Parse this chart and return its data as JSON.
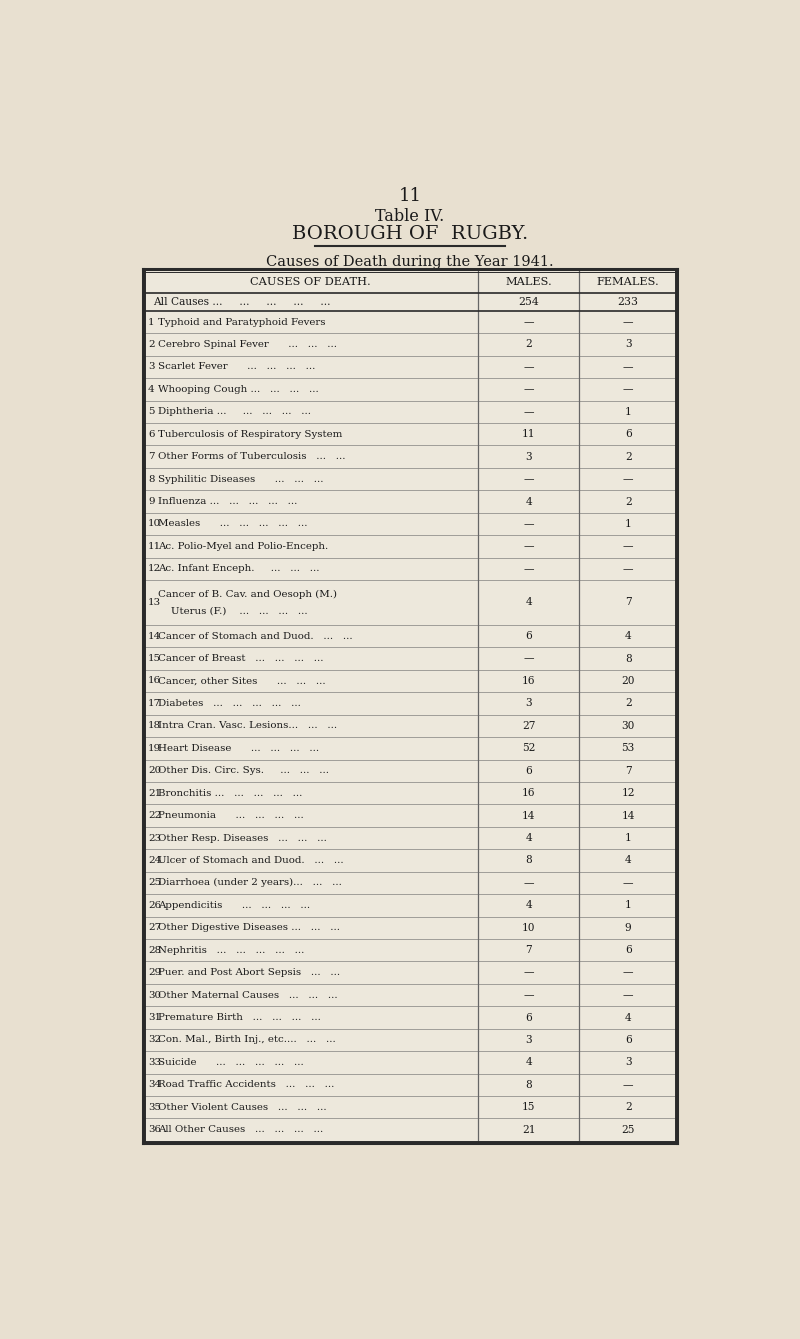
{
  "page_number": "11",
  "title_line1": "Table IV.",
  "title_line2": "BOROUGH OF  RUGBY.",
  "subtitle": "Causes of Death during the Year 1941.",
  "col_headers": [
    "CAUSES OF DEATH.",
    "MALES.",
    "FEMALES."
  ],
  "all_causes_m": "254",
  "all_causes_f": "233",
  "rows": [
    {
      "num": "1",
      "cause": "Typhoid and Paratyphoid Fevers",
      "dots": "...",
      "m": "—",
      "f": "—",
      "two_line": false
    },
    {
      "num": "2",
      "cause": "Cerebro Spinal Fever      ...   ...   ...",
      "dots": "",
      "m": "2",
      "f": "3",
      "two_line": false
    },
    {
      "num": "3",
      "cause": "Scarlet Fever      ...   ...   ...   ...",
      "dots": "",
      "m": "—",
      "f": "—",
      "two_line": false
    },
    {
      "num": "4",
      "cause": "Whooping Cough ...   ...   ...   ...",
      "dots": "",
      "m": "—",
      "f": "—",
      "two_line": false
    },
    {
      "num": "5",
      "cause": "Diphtheria ...     ...   ...   ...   ...",
      "dots": "",
      "m": "—",
      "f": "1",
      "two_line": false
    },
    {
      "num": "6",
      "cause": "Tuberculosis of Respiratory System",
      "dots": "...",
      "m": "11",
      "f": "6",
      "two_line": false
    },
    {
      "num": "7",
      "cause": "Other Forms of Tuberculosis   ...   ...",
      "dots": "",
      "m": "3",
      "f": "2",
      "two_line": false
    },
    {
      "num": "8",
      "cause": "Syphilitic Diseases      ...   ...   ...",
      "dots": "",
      "m": "—",
      "f": "—",
      "two_line": false
    },
    {
      "num": "9",
      "cause": "Influenza ...   ...   ...   ...   ...",
      "dots": "",
      "m": "4",
      "f": "2",
      "two_line": false
    },
    {
      "num": "10",
      "cause": "Measles      ...   ...   ...   ...   ...",
      "dots": "",
      "m": "—",
      "f": "1",
      "two_line": false
    },
    {
      "num": "11",
      "cause": "Ac. Polio-Myel and Polio-Enceph.",
      "dots": "...",
      "m": "—",
      "f": "—",
      "two_line": false
    },
    {
      "num": "12",
      "cause": "Ac. Infant Enceph.     ...   ...   ...",
      "dots": "",
      "m": "—",
      "f": "—",
      "two_line": false
    },
    {
      "num": "13",
      "cause": "Cancer of B. Cav. and Oesoph (M.)",
      "dots": "",
      "m": "4",
      "f": "7",
      "two_line": true,
      "cause2": "    Uterus (F.)    ...   ...   ...   ..."
    },
    {
      "num": "14",
      "cause": "Cancer of Stomach and Duod.   ...   ...",
      "dots": "",
      "m": "6",
      "f": "4",
      "two_line": false
    },
    {
      "num": "15",
      "cause": "Cancer of Breast   ...   ...   ...   ...",
      "dots": "",
      "m": "—",
      "f": "8",
      "two_line": false
    },
    {
      "num": "16",
      "cause": "Cancer, other Sites      ...   ...   ...",
      "dots": "",
      "m": "16",
      "f": "20",
      "two_line": false
    },
    {
      "num": "17",
      "cause": "Diabetes   ...   ...   ...   ...   ...",
      "dots": "",
      "m": "3",
      "f": "2",
      "two_line": false
    },
    {
      "num": "18",
      "cause": "Intra Cran. Vasc. Lesions...   ...   ...",
      "dots": "",
      "m": "27",
      "f": "30",
      "two_line": false
    },
    {
      "num": "19",
      "cause": "Heart Disease      ...   ...   ...   ...",
      "dots": "",
      "m": "52",
      "f": "53",
      "two_line": false
    },
    {
      "num": "20",
      "cause": "Other Dis. Circ. Sys.     ...   ...   ...",
      "dots": "",
      "m": "6",
      "f": "7",
      "two_line": false
    },
    {
      "num": "21",
      "cause": "Bronchitis ...   ...   ...   ...   ...",
      "dots": "",
      "m": "16",
      "f": "12",
      "two_line": false
    },
    {
      "num": "22",
      "cause": "Pneumonia      ...   ...   ...   ...",
      "dots": "",
      "m": "14",
      "f": "14",
      "two_line": false
    },
    {
      "num": "23",
      "cause": "Other Resp. Diseases   ...   ...   ...",
      "dots": "",
      "m": "4",
      "f": "1",
      "two_line": false
    },
    {
      "num": "24",
      "cause": "Ulcer of Stomach and Duod.   ...   ...",
      "dots": "",
      "m": "8",
      "f": "4",
      "two_line": false
    },
    {
      "num": "25",
      "cause": "Diarrhoea (under 2 years)...   ...   ...",
      "dots": "",
      "m": "—",
      "f": "—",
      "two_line": false
    },
    {
      "num": "26",
      "cause": "Appendicitis      ...   ...   ...   ...",
      "dots": "",
      "m": "4",
      "f": "1",
      "two_line": false
    },
    {
      "num": "27",
      "cause": "Other Digestive Diseases ...   ...   ...",
      "dots": "",
      "m": "10",
      "f": "9",
      "two_line": false
    },
    {
      "num": "28",
      "cause": "Nephritis   ...   ...   ...   ...   ...",
      "dots": "",
      "m": "7",
      "f": "6",
      "two_line": false
    },
    {
      "num": "29",
      "cause": "Puer. and Post Abort Sepsis   ...   ...",
      "dots": "",
      "m": "—",
      "f": "—",
      "two_line": false
    },
    {
      "num": "30",
      "cause": "Other Maternal Causes   ...   ...   ...",
      "dots": "",
      "m": "—",
      "f": "—",
      "two_line": false
    },
    {
      "num": "31",
      "cause": "Premature Birth   ...   ...   ...   ...",
      "dots": "",
      "m": "6",
      "f": "4",
      "two_line": false
    },
    {
      "num": "32",
      "cause": "Con. Mal., Birth Inj., etc....   ...   ...",
      "dots": "",
      "m": "3",
      "f": "6",
      "two_line": false
    },
    {
      "num": "33",
      "cause": "Suicide      ...   ...   ...   ...   ...",
      "dots": "",
      "m": "4",
      "f": "3",
      "two_line": false
    },
    {
      "num": "34",
      "cause": "Road Traffic Accidents   ...   ...   ...",
      "dots": "",
      "m": "8",
      "f": "—",
      "two_line": false
    },
    {
      "num": "35",
      "cause": "Other Violent Causes   ...   ...   ...",
      "dots": "",
      "m": "15",
      "f": "2",
      "two_line": false
    },
    {
      "num": "36",
      "cause": "All Other Causes   ...   ...   ...   ...",
      "dots": "",
      "m": "21",
      "f": "25",
      "two_line": false
    }
  ],
  "bg_color": "#e8e0d0",
  "table_bg": "#ede8dc",
  "text_color": "#1a1a1a",
  "border_color": "#2a2a2a",
  "line_color": "#666666"
}
